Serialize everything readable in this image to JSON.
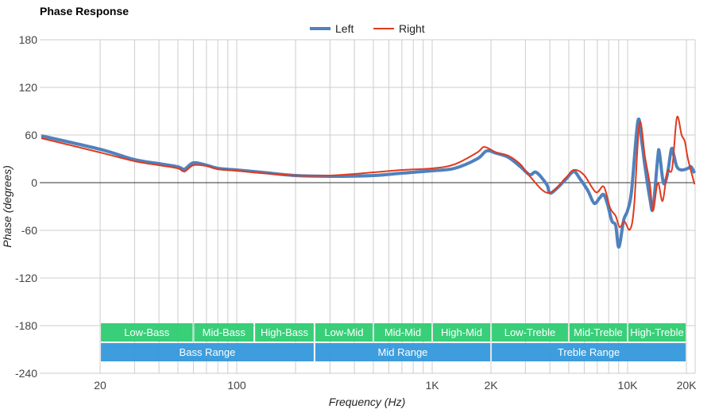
{
  "chart_data": {
    "type": "line",
    "title": "Phase Response",
    "xlabel": "Frequency (Hz)",
    "ylabel": "Phase (degrees)",
    "xscale": "log",
    "xlim": [
      10,
      22000
    ],
    "ylim": [
      -240,
      180
    ],
    "yticks": [
      180,
      120,
      60,
      0,
      -60,
      -120,
      -180,
      -240
    ],
    "xticks": [
      {
        "v": 20,
        "label": "20"
      },
      {
        "v": 100,
        "label": "100"
      },
      {
        "v": 1000,
        "label": "1K"
      },
      {
        "v": 2000,
        "label": "2K"
      },
      {
        "v": 10000,
        "label": "10K"
      },
      {
        "v": 20000,
        "label": "20K"
      }
    ],
    "grid": true,
    "legend_position": "top-center",
    "series": [
      {
        "name": "Left",
        "color": "#4f81bd",
        "points": [
          [
            10,
            59
          ],
          [
            20,
            42
          ],
          [
            30,
            29
          ],
          [
            40,
            24
          ],
          [
            50,
            20
          ],
          [
            54,
            17
          ],
          [
            60,
            25
          ],
          [
            70,
            22
          ],
          [
            80,
            18
          ],
          [
            100,
            16
          ],
          [
            135,
            13
          ],
          [
            200,
            9
          ],
          [
            300,
            8
          ],
          [
            500,
            9
          ],
          [
            700,
            12
          ],
          [
            1000,
            15
          ],
          [
            1300,
            18
          ],
          [
            1700,
            30
          ],
          [
            1900,
            40
          ],
          [
            2130,
            37
          ],
          [
            2450,
            32
          ],
          [
            2830,
            20
          ],
          [
            3160,
            10
          ],
          [
            3410,
            13
          ],
          [
            3850,
            -2
          ],
          [
            4000,
            -13
          ],
          [
            4310,
            -8
          ],
          [
            4820,
            4
          ],
          [
            5300,
            14
          ],
          [
            5700,
            5
          ],
          [
            6260,
            -10
          ],
          [
            6750,
            -26
          ],
          [
            7200,
            -19
          ],
          [
            7550,
            -15
          ],
          [
            7910,
            -28
          ],
          [
            8300,
            -48
          ],
          [
            8690,
            -54
          ],
          [
            9020,
            -81
          ],
          [
            9550,
            -47
          ],
          [
            10000,
            -35
          ],
          [
            10480,
            -10
          ],
          [
            11300,
            78
          ],
          [
            11840,
            50
          ],
          [
            12280,
            20
          ],
          [
            13000,
            -20
          ],
          [
            13490,
            -32
          ],
          [
            14270,
            32
          ],
          [
            14540,
            38
          ],
          [
            15240,
            0
          ],
          [
            15960,
            10
          ],
          [
            16740,
            42
          ],
          [
            17220,
            35
          ],
          [
            17870,
            20
          ],
          [
            18890,
            16
          ],
          [
            20360,
            18
          ],
          [
            21130,
            20
          ],
          [
            22000,
            12
          ]
        ]
      },
      {
        "name": "Right",
        "color": "#e03a1e",
        "points": [
          [
            10,
            56
          ],
          [
            20,
            38
          ],
          [
            30,
            27
          ],
          [
            40,
            22
          ],
          [
            50,
            18
          ],
          [
            54,
            14
          ],
          [
            60,
            22
          ],
          [
            70,
            21
          ],
          [
            80,
            17
          ],
          [
            100,
            15
          ],
          [
            135,
            12
          ],
          [
            200,
            9
          ],
          [
            300,
            9
          ],
          [
            500,
            13
          ],
          [
            700,
            16
          ],
          [
            1000,
            18
          ],
          [
            1300,
            23
          ],
          [
            1700,
            38
          ],
          [
            1850,
            45
          ],
          [
            2130,
            38
          ],
          [
            2450,
            34
          ],
          [
            2830,
            23
          ],
          [
            3160,
            8
          ],
          [
            3920,
            -13
          ],
          [
            4820,
            6
          ],
          [
            5300,
            16
          ],
          [
            5970,
            10
          ],
          [
            6880,
            -12
          ],
          [
            7550,
            -5
          ],
          [
            8140,
            -32
          ],
          [
            8690,
            -42
          ],
          [
            9100,
            -56
          ],
          [
            9630,
            -49
          ],
          [
            10280,
            -59
          ],
          [
            10790,
            -30
          ],
          [
            11510,
            75
          ],
          [
            12280,
            32
          ],
          [
            13000,
            -2
          ],
          [
            13490,
            -35
          ],
          [
            14270,
            0
          ],
          [
            15100,
            -23
          ],
          [
            15960,
            14
          ],
          [
            16900,
            18
          ],
          [
            17870,
            82
          ],
          [
            18890,
            60
          ],
          [
            19620,
            52
          ],
          [
            20360,
            30
          ],
          [
            22000,
            -2
          ]
        ]
      }
    ],
    "bands": [
      {
        "label": "Low-Bass",
        "from": 20,
        "to": 60,
        "row": 1
      },
      {
        "label": "Mid-Bass",
        "from": 60,
        "to": 123,
        "row": 1
      },
      {
        "label": "High-Bass",
        "from": 123,
        "to": 250,
        "row": 1
      },
      {
        "label": "Low-Mid",
        "from": 250,
        "to": 500,
        "row": 1
      },
      {
        "label": "Mid-Mid",
        "from": 500,
        "to": 1000,
        "row": 1
      },
      {
        "label": "High-Mid",
        "from": 1000,
        "to": 2000,
        "row": 1
      },
      {
        "label": "Low-Treble",
        "from": 2000,
        "to": 5000,
        "row": 1
      },
      {
        "label": "Mid-Treble",
        "from": 5000,
        "to": 10000,
        "row": 1
      },
      {
        "label": "High-Treble",
        "from": 10000,
        "to": 20000,
        "row": 1
      },
      {
        "label": "Bass Range",
        "from": 20,
        "to": 250,
        "row": 2
      },
      {
        "label": "Mid Range",
        "from": 250,
        "to": 2000,
        "row": 2
      },
      {
        "label": "Treble Range",
        "from": 2000,
        "to": 20000,
        "row": 2
      }
    ],
    "band_colors": {
      "row1": "#2ecc71",
      "row2": "#3498db"
    }
  }
}
